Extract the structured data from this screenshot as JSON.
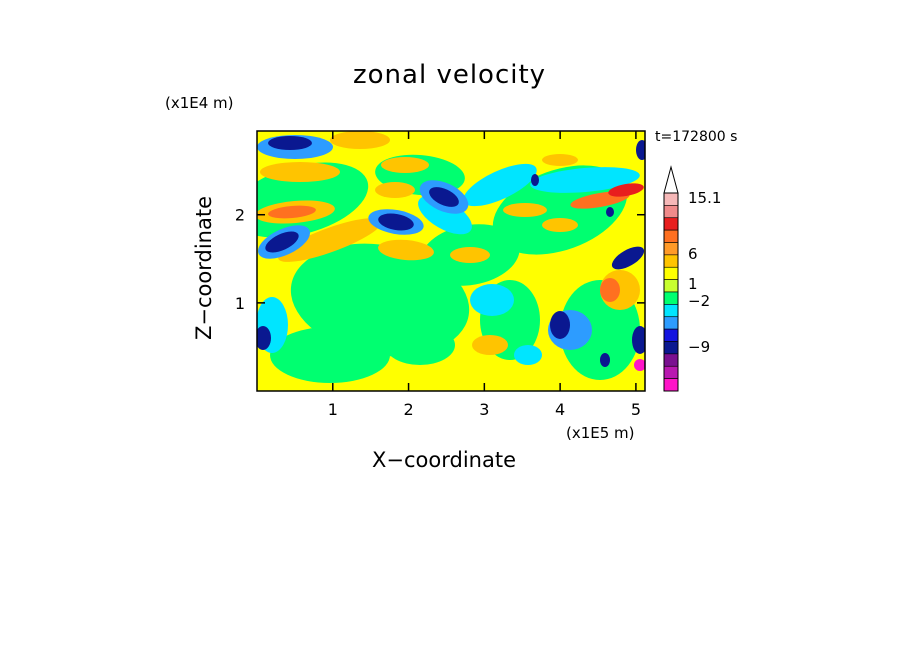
{
  "chart_data": {
    "type": "heatmap",
    "title": "zonal velocity",
    "xlabel": "X−coordinate",
    "ylabel": "Z−coordinate",
    "x_unit_label": "(x1E5 m)",
    "y_unit_label": "(x1E4 m)",
    "time_label": "t=172800 s",
    "xlim": [
      0,
      5.12
    ],
    "ylim": [
      0,
      2.95
    ],
    "x_ticks": [
      "1",
      "2",
      "3",
      "4",
      "5"
    ],
    "x_tick_values": [
      1,
      2,
      3,
      4,
      5
    ],
    "y_ticks": [
      "1",
      "2"
    ],
    "y_tick_values": [
      1,
      2
    ],
    "colorbar": {
      "tick_labels": [
        "15.1",
        "6",
        "1",
        "−2",
        "−9"
      ],
      "bands_top_to_bottom": [
        "#f6b8b8",
        "#f08a8a",
        "#e81e1e",
        "#ff7020",
        "#ff9a28",
        "#ffc400",
        "#ffff00",
        "#c8ff30",
        "#00ff70",
        "#00e5ff",
        "#2d9cff",
        "#1414e0",
        "#0a1890",
        "#7a1090",
        "#b818b0",
        "#ff14c8"
      ],
      "extend": "max"
    },
    "color_levels": {
      "strong_negative": "#0a1890",
      "negative": "#2d9cff",
      "slight_negative": "#00e5ff",
      "near_zero": "#00ff70",
      "slight_positive": "#ffff00",
      "positive": "#ffc400",
      "strong_positive": "#ff7020",
      "very_strong_positive": "#e81e1e",
      "extreme_negative": "#ff14c8"
    },
    "grid": false
  }
}
